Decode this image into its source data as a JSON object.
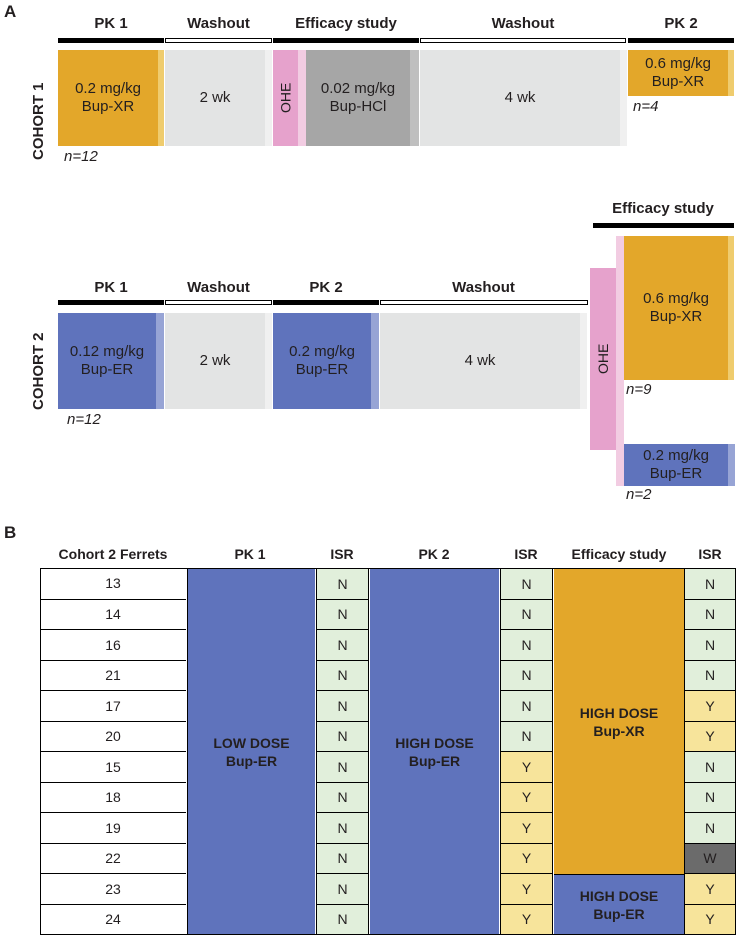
{
  "panel_a": {
    "label": "A",
    "cohort1": {
      "label": "COHORT 1",
      "phases": [
        "PK 1",
        "Washout",
        "Efficacy study",
        "Washout",
        "PK 2"
      ],
      "boxes": {
        "pk1": "0.2 mg/kg\nBup-XR",
        "washout1": "2 wk",
        "ohe": "OHE",
        "efficacy": "0.02 mg/kg\nBup-HCl",
        "washout2": "4 wk",
        "pk2": "0.6 mg/kg\nBup-XR"
      },
      "n_pk1": "n=12",
      "n_pk2": "n=4"
    },
    "cohort2": {
      "label": "COHORT 2",
      "phases": [
        "PK 1",
        "Washout",
        "PK 2",
        "Washout",
        "Efficacy study"
      ],
      "boxes": {
        "pk1": "0.12 mg/kg\nBup-ER",
        "washout1": "2 wk",
        "pk2": "0.2 mg/kg\nBup-ER",
        "washout2": "4 wk",
        "ohe": "OHE",
        "eff_xr": "0.6 mg/kg\nBup-XR",
        "eff_er": "0.2 mg/kg\nBup-ER"
      },
      "n_pk1": "n=12",
      "n_xr": "n=9",
      "n_er": "n=2"
    }
  },
  "panel_b": {
    "label": "B",
    "headers": [
      "Cohort 2 Ferrets",
      "PK 1",
      "ISR",
      "PK 2",
      "ISR",
      "Efficacy study",
      "ISR"
    ],
    "ferrets": [
      "13",
      "14",
      "16",
      "21",
      "17",
      "20",
      "15",
      "18",
      "19",
      "22",
      "23",
      "24"
    ],
    "isr_pk1": [
      "N",
      "N",
      "N",
      "N",
      "N",
      "N",
      "N",
      "N",
      "N",
      "N",
      "N",
      "N"
    ],
    "isr_pk2": [
      "N",
      "N",
      "N",
      "N",
      "N",
      "N",
      "Y",
      "Y",
      "Y",
      "Y",
      "Y",
      "Y"
    ],
    "isr_eff": [
      "N",
      "N",
      "N",
      "N",
      "Y",
      "Y",
      "N",
      "N",
      "N",
      "W",
      "Y",
      "Y"
    ],
    "pk1_dose": "LOW DOSE\nBup-ER",
    "pk2_dose": "HIGH DOSE\nBup-ER",
    "eff_xr_dose": "HIGH DOSE\nBup-XR",
    "eff_er_dose": "HIGH DOSE\nBup-ER"
  },
  "colors": {
    "bup_xr": "#e3a72a",
    "bup_er": "#5f73bc",
    "washout": "#e3e4e4",
    "bup_hcl": "#a6a6a6",
    "ohe": "#e6a2cc",
    "isr_no": "#e1efdb",
    "isr_yes": "#f7e49b",
    "isr_withdrawn": "#6b6b6b"
  }
}
